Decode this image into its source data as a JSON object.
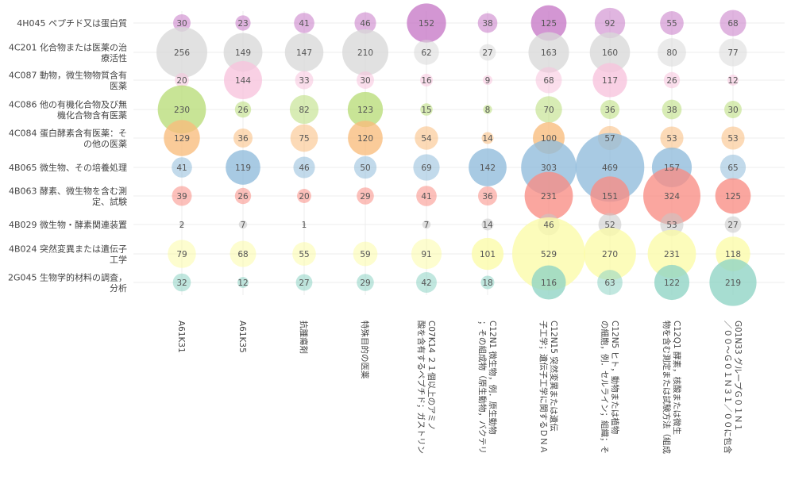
{
  "chart_data": {
    "type": "bubble",
    "rows": [
      [
        "4H045 ペプチド又は蛋白質"
      ],
      [
        "4C201 化合物または医薬の治",
        "療活性"
      ],
      [
        "4C087 動物，微生物物質含有",
        "医薬"
      ],
      [
        "4C086 他の有機化合物及び無",
        "機化合物含有医薬"
      ],
      [
        "4C084 蛋白酵素含有医薬：そ",
        "の他の医薬"
      ],
      [
        "4B065 微生物、その培養処理"
      ],
      [
        "4B063 酵素、微生物を含む測",
        "定、試験"
      ],
      [
        "4B029 微生物・酵素関連装置"
      ],
      [
        "4B024 突然変異または遺伝子",
        "工学"
      ],
      [
        "2G045 生物学的材料の調査，",
        "分析"
      ]
    ],
    "columns": [
      [
        "A61K31"
      ],
      [
        "A61K35"
      ],
      [
        "抗腫瘍剤"
      ],
      [
        "特殊目的の医薬"
      ],
      [
        "C07K14 ２１個以上のアミノ",
        "酸を含有するペプチド；ガストリン"
      ],
      [
        "C12N1 微生物，例．原生動物",
        "；その組成物（原生動物，バクテリ"
      ],
      [
        "C12N15 突然変異または遺伝",
        "子工学；遺伝子工学に関するＤＮＡ"
      ],
      [
        "C12N5 ヒト，動物または植物",
        "の細胞，例．セルライン；組織；そ"
      ],
      [
        "C12Q1 酵素，核酸または微生",
        "物を含む測定または試験方法（組成"
      ],
      [
        "G01N33 グループＧ０１Ｎ１",
        "／００～Ｇ０１Ｎ３１／００に包含"
      ]
    ],
    "values": [
      [
        30,
        23,
        41,
        46,
        152,
        38,
        125,
        92,
        55,
        68
      ],
      [
        256,
        149,
        147,
        210,
        62,
        27,
        163,
        160,
        80,
        77
      ],
      [
        20,
        144,
        33,
        30,
        16,
        9,
        68,
        117,
        26,
        12
      ],
      [
        230,
        26,
        82,
        123,
        15,
        8,
        70,
        36,
        38,
        30
      ],
      [
        129,
        36,
        75,
        120,
        54,
        14,
        100,
        57,
        53,
        53
      ],
      [
        41,
        119,
        46,
        50,
        69,
        142,
        303,
        469,
        157,
        65
      ],
      [
        39,
        26,
        20,
        29,
        41,
        36,
        231,
        151,
        324,
        125
      ],
      [
        2,
        7,
        1,
        null,
        7,
        14,
        46,
        52,
        53,
        27
      ],
      [
        79,
        68,
        55,
        59,
        91,
        101,
        529,
        270,
        231,
        118
      ],
      [
        32,
        12,
        27,
        29,
        42,
        18,
        116,
        63,
        122,
        219
      ]
    ],
    "row_colors": [
      "#c678c6",
      "#d9d9d9",
      "#f7c3dc",
      "#b8dc78",
      "#f9bc7c",
      "#8fbbdb",
      "#f98d84",
      "#c6c6c6",
      "#fbfba8",
      "#8ed3c4"
    ],
    "highlight_threshold": 100,
    "grid": true
  }
}
